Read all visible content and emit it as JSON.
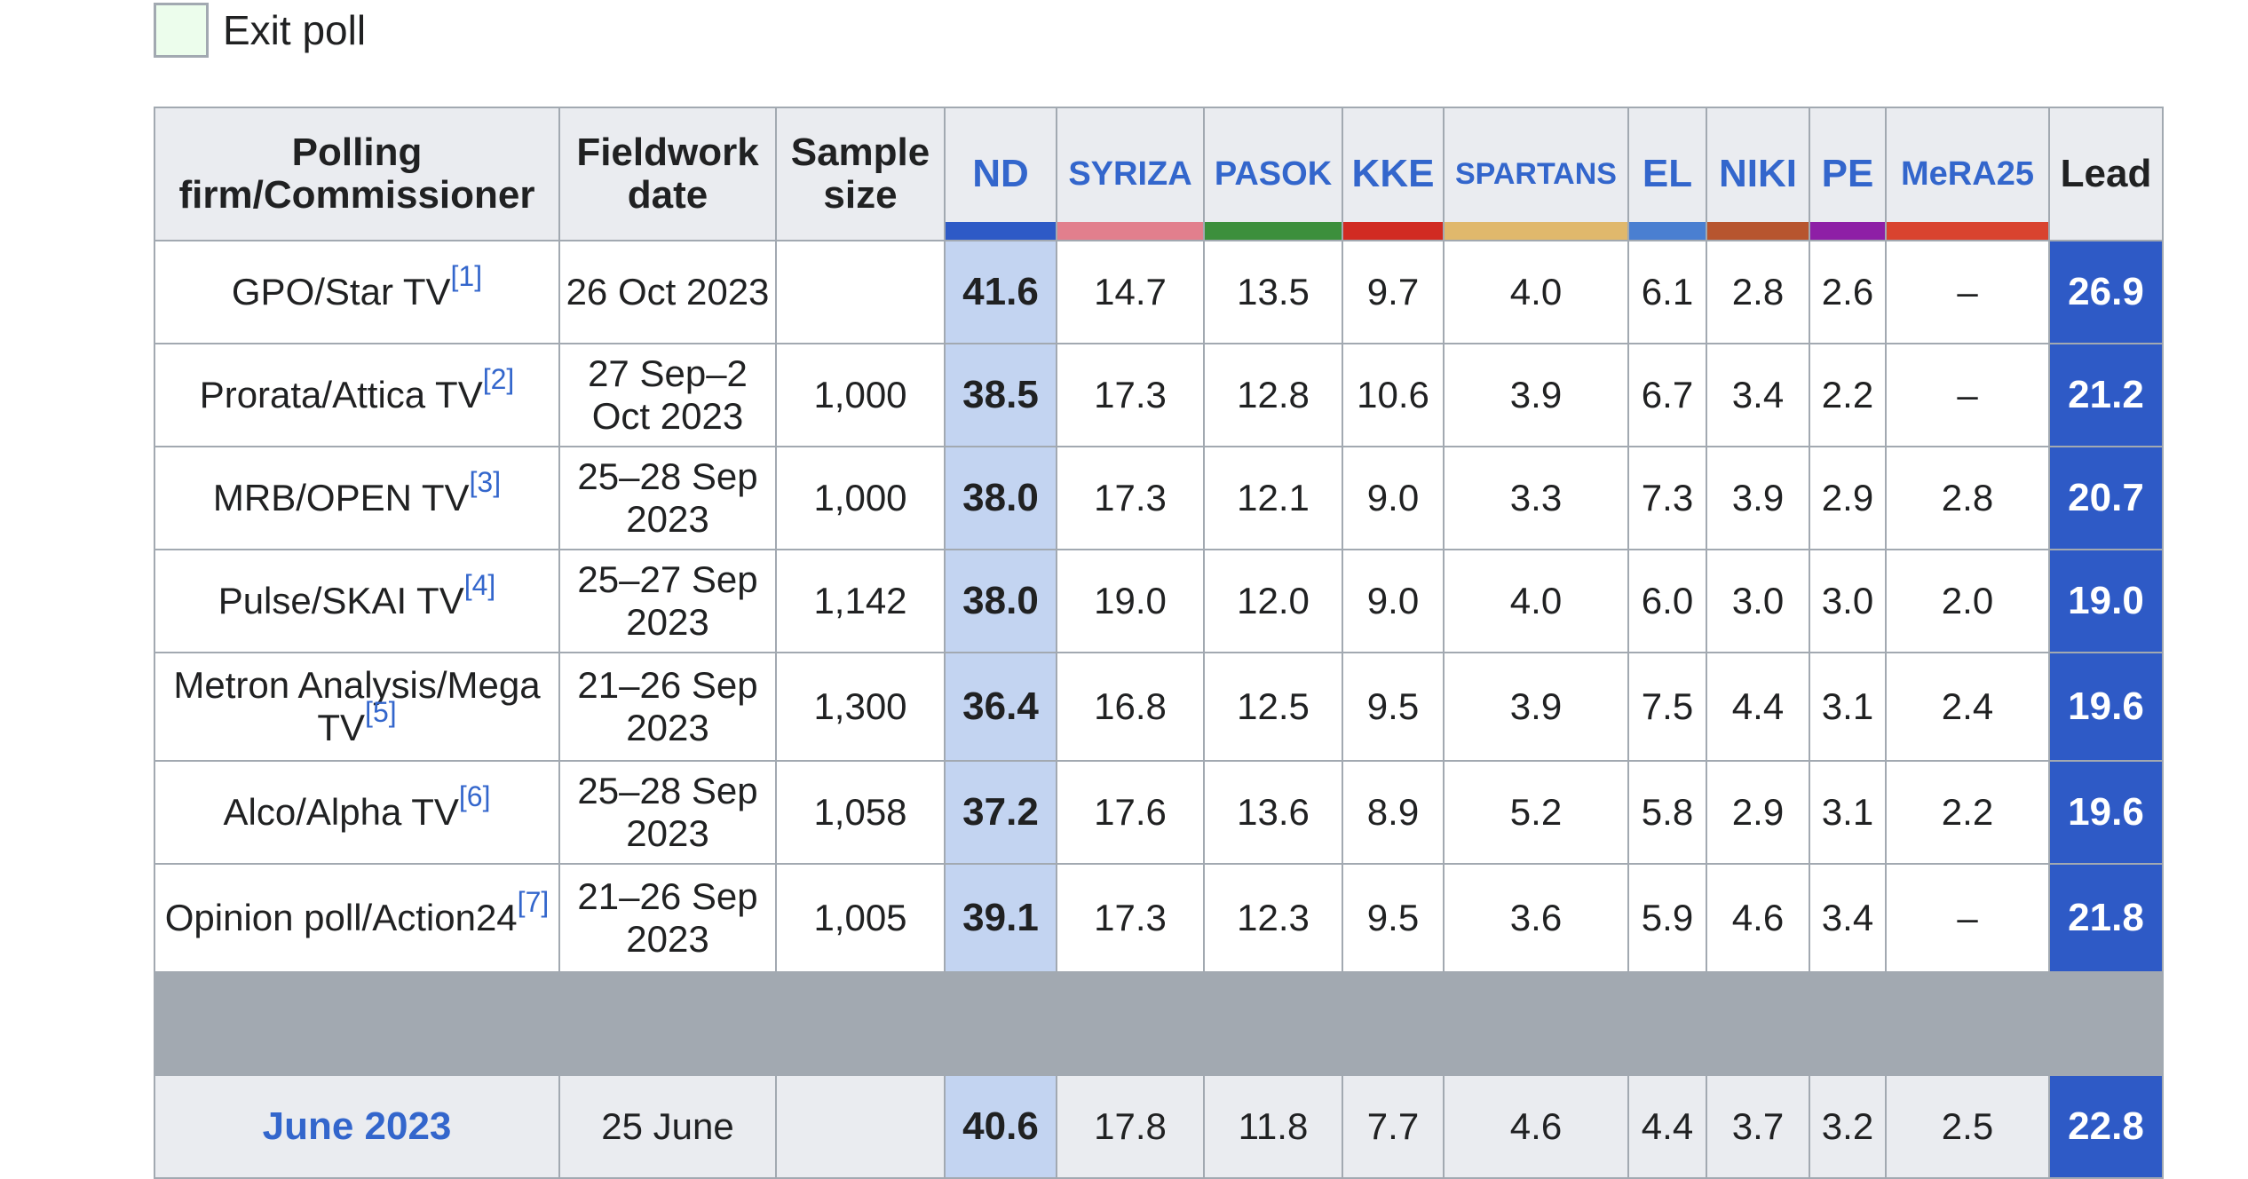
{
  "legend": {
    "label": "Exit poll",
    "swatch_color": "#ecfdec"
  },
  "table": {
    "headers": {
      "firm": "Polling firm/Commissioner",
      "date": "Fieldwork date",
      "sample": "Sample size",
      "lead": "Lead"
    },
    "parties": [
      {
        "name": "ND",
        "color": "#2e5ac6"
      },
      {
        "name": "SYRIZA",
        "color": "#e27f8d"
      },
      {
        "name": "PASOK",
        "color": "#3c8f3c"
      },
      {
        "name": "KKE",
        "color": "#d12b22"
      },
      {
        "name": "SPARTANS",
        "color": "#e0b86c"
      },
      {
        "name": "EL",
        "color": "#4a7fd1"
      },
      {
        "name": "NIKI",
        "color": "#b7552f"
      },
      {
        "name": "PE",
        "color": "#8e1fa6"
      },
      {
        "name": "MeRA25",
        "color": "#d9432f"
      }
    ],
    "rows": [
      {
        "firm": "GPO/Star TV",
        "ref": "[1]",
        "date": "26 Oct 2023",
        "sample": "",
        "values": [
          "41.6",
          "14.7",
          "13.5",
          "9.7",
          "4.0",
          "6.1",
          "2.8",
          "2.6",
          "–"
        ],
        "lead": "26.9"
      },
      {
        "firm": "Prorata/Attica TV",
        "ref": "[2]",
        "date": "27 Sep–2 Oct 2023",
        "sample": "1,000",
        "values": [
          "38.5",
          "17.3",
          "12.8",
          "10.6",
          "3.9",
          "6.7",
          "3.4",
          "2.2",
          "–"
        ],
        "lead": "21.2"
      },
      {
        "firm": "MRB/OPEN TV",
        "ref": "[3]",
        "date": "25–28 Sep 2023",
        "sample": "1,000",
        "values": [
          "38.0",
          "17.3",
          "12.1",
          "9.0",
          "3.3",
          "7.3",
          "3.9",
          "2.9",
          "2.8"
        ],
        "lead": "20.7"
      },
      {
        "firm": "Pulse/SKAI TV",
        "ref": "[4]",
        "date": "25–27 Sep 2023",
        "sample": "1,142",
        "values": [
          "38.0",
          "19.0",
          "12.0",
          "9.0",
          "4.0",
          "6.0",
          "3.0",
          "3.0",
          "2.0"
        ],
        "lead": "19.0"
      },
      {
        "firm": "Metron Analysis/Mega TV",
        "ref": "[5]",
        "date": "21–26 Sep 2023",
        "sample": "1,300",
        "values": [
          "36.4",
          "16.8",
          "12.5",
          "9.5",
          "3.9",
          "7.5",
          "4.4",
          "3.1",
          "2.4"
        ],
        "lead": "19.6"
      },
      {
        "firm": "Alco/Alpha TV",
        "ref": "[6]",
        "date": "25–28 Sep 2023",
        "sample": "1,058",
        "values": [
          "37.2",
          "17.6",
          "13.6",
          "8.9",
          "5.2",
          "5.8",
          "2.9",
          "3.1",
          "2.2"
        ],
        "lead": "19.6"
      },
      {
        "firm": "Opinion poll/Action24",
        "ref": "[7]",
        "date": "21–26 Sep 2023",
        "sample": "1,005",
        "values": [
          "39.1",
          "17.3",
          "12.3",
          "9.5",
          "3.6",
          "5.9",
          "4.6",
          "3.4",
          "–"
        ],
        "lead": "21.8"
      }
    ],
    "election": {
      "label": "June 2023",
      "date": "25 June",
      "values": [
        "40.6",
        "17.8",
        "11.8",
        "7.7",
        "4.6",
        "4.4",
        "3.7",
        "3.2",
        "2.5"
      ],
      "lead": "22.8"
    }
  }
}
